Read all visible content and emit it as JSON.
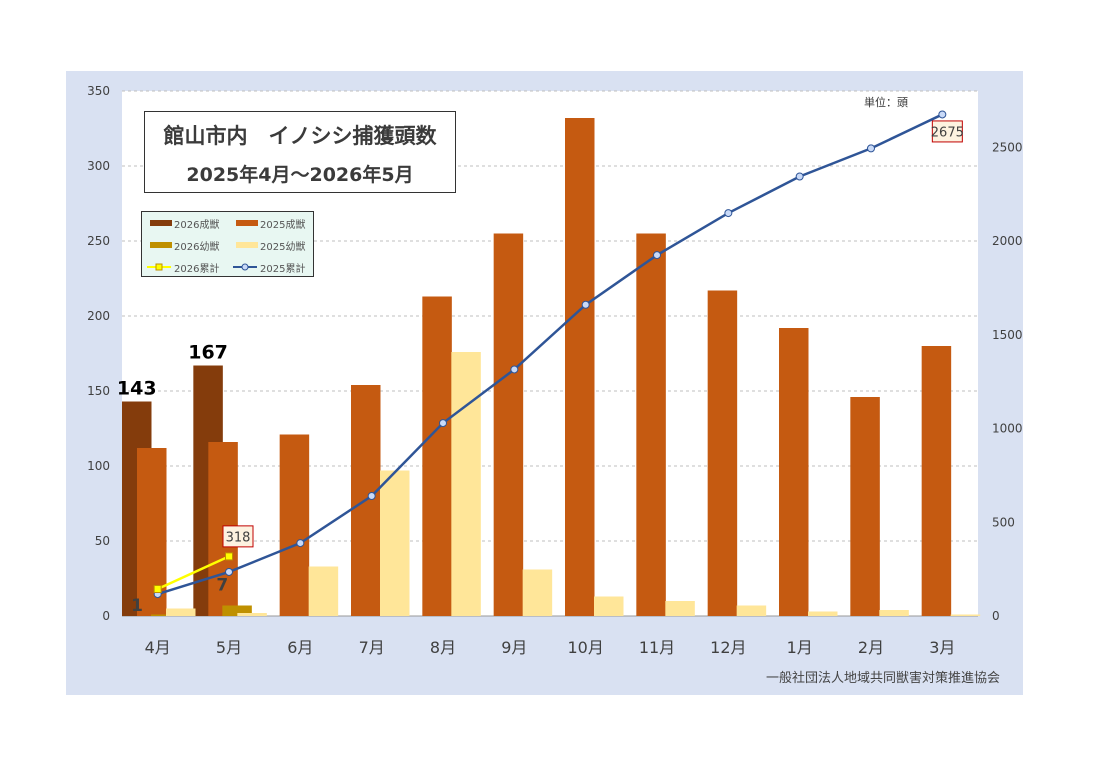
{
  "chart_data": {
    "type": "bar",
    "title": "館山市内　イノシシ捕獲頭数",
    "subtitle": "2025年4月～2026年5月",
    "unit_label": "単位：頭",
    "footer": "一般社団法人地域共同獣害対策推進協会",
    "categories": [
      "4月",
      "5月",
      "6月",
      "7月",
      "8月",
      "9月",
      "10月",
      "11月",
      "12月",
      "1月",
      "2月",
      "3月"
    ],
    "left_axis": {
      "ticks": [
        "0",
        "50",
        "100",
        "150",
        "200",
        "250",
        "300",
        "350"
      ],
      "ylim": [
        0,
        350
      ]
    },
    "right_axis": {
      "ticks": [
        "0",
        "500",
        "1000",
        "1500",
        "2000",
        "2500"
      ],
      "ylim": [
        0,
        2800
      ]
    },
    "grid": true,
    "legend_placement": "top-left",
    "series": [
      {
        "name": "2026成獣",
        "kind": "bar",
        "axis": "left",
        "color": "#843c0c",
        "values": [
          143,
          167,
          null,
          null,
          null,
          null,
          null,
          null,
          null,
          null,
          null,
          null
        ]
      },
      {
        "name": "2025成獣",
        "kind": "bar",
        "axis": "left",
        "color": "#c55a11",
        "values": [
          112,
          116,
          121,
          154,
          213,
          255,
          332,
          255,
          217,
          192,
          146,
          180
        ]
      },
      {
        "name": "2026幼獣",
        "kind": "bar",
        "axis": "left",
        "color": "#bf9000",
        "values": [
          1,
          7,
          null,
          null,
          null,
          null,
          null,
          null,
          null,
          null,
          null,
          null
        ]
      },
      {
        "name": "2025幼獣",
        "kind": "bar",
        "axis": "left",
        "color": "#ffe699",
        "values": [
          5,
          2,
          33,
          97,
          176,
          31,
          13,
          10,
          7,
          3,
          4,
          1
        ]
      },
      {
        "name": "2026累計",
        "kind": "line",
        "axis": "right",
        "color": "#ffff00",
        "values": [
          144,
          318,
          null,
          null,
          null,
          null,
          null,
          null,
          null,
          null,
          null,
          null
        ]
      },
      {
        "name": "2025累計",
        "kind": "line",
        "axis": "right",
        "color": "#2f5597",
        "values": [
          117,
          235,
          389,
          640,
          1029,
          1315,
          1660,
          1925,
          2149,
          2344,
          2494,
          2675
        ]
      }
    ],
    "annotations": {
      "adult_2026_labels": [
        "143",
        "167"
      ],
      "young_2026_labels": [
        "1",
        "7"
      ],
      "cum_2026_end_label": "318",
      "cum_2025_end_label": "2675"
    }
  }
}
